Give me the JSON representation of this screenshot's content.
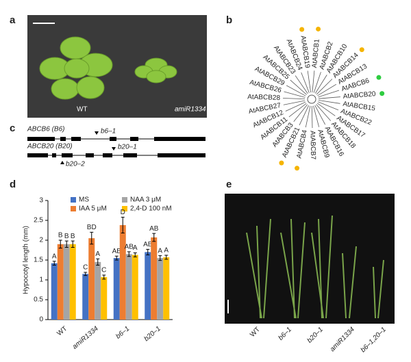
{
  "panels": {
    "a": "a",
    "b": "b",
    "c": "c",
    "d": "d",
    "e": "e"
  },
  "photo_a": {
    "labels": [
      "WT",
      "amiR1334"
    ]
  },
  "tree": {
    "leaves": [
      {
        "label": "AtABCB19",
        "marker": "#f5b400"
      },
      {
        "label": "AtABCB1",
        "marker": "#f5b400"
      },
      {
        "label": "AtABCB2"
      },
      {
        "label": "AtABCB10"
      },
      {
        "label": "AtABCB14",
        "marker": "#f5b400"
      },
      {
        "label": "AtABCB13"
      },
      {
        "label": "AtABCB6",
        "marker": "#2ecc40"
      },
      {
        "label": "AtABCB20",
        "marker": "#2ecc40"
      },
      {
        "label": "AtABCB15"
      },
      {
        "label": "AtABCB22"
      },
      {
        "label": "AtABCB17"
      },
      {
        "label": "AtABCB18"
      },
      {
        "label": "AtABCB16"
      },
      {
        "label": "AtABCB9"
      },
      {
        "label": "AtABCB7"
      },
      {
        "label": "AtABCB4",
        "marker": "#f5b400"
      },
      {
        "label": "AtABCB21",
        "marker": "#f5b400"
      },
      {
        "label": "AtABCB3"
      },
      {
        "label": "AtABCB11"
      },
      {
        "label": "AtABCB12"
      },
      {
        "label": "AtABCB27"
      },
      {
        "label": "AtABCB28"
      },
      {
        "label": "AtABCB26"
      },
      {
        "label": "AtABCB29"
      },
      {
        "label": "AtABCB25"
      },
      {
        "label": "AtABCB23"
      },
      {
        "label": "AtABCB24"
      }
    ]
  },
  "genes": {
    "b6_name": "ABCB6 (B6)",
    "b6_allele": "b6–1",
    "b20_name": "ABCB20 (B20)",
    "b20_allele1": "b20–1",
    "b20_allele2": "b20–2"
  },
  "chart_data": {
    "type": "bar",
    "y_label": "Hypocotyl length (mm)",
    "categories": [
      "WT",
      "amiR1334",
      "b6–1",
      "b20–1"
    ],
    "series": [
      {
        "name": "MS",
        "color": "#4472c4",
        "values": [
          1.42,
          1.15,
          1.55,
          1.7
        ],
        "errors": [
          0.05,
          0.04,
          0.05,
          0.07
        ],
        "letters": [
          "A",
          "C",
          "AB",
          "AB"
        ]
      },
      {
        "name": "IAA 5 μM",
        "color": "#ed7d31",
        "values": [
          1.9,
          2.05,
          2.38,
          2.07
        ],
        "errors": [
          0.1,
          0.15,
          0.2,
          0.1
        ],
        "letters": [
          "B",
          "BD",
          "D",
          "AB"
        ]
      },
      {
        "name": "NAA 3 μM",
        "color": "#a5a5a5",
        "values": [
          1.9,
          1.45,
          1.65,
          1.55
        ],
        "errors": [
          0.08,
          0.08,
          0.06,
          0.06
        ],
        "letters": [
          "B",
          "A",
          "AB",
          "A"
        ]
      },
      {
        "name": "2,4-D 100 nM",
        "color": "#ffc000",
        "values": [
          1.9,
          1.07,
          1.63,
          1.57
        ],
        "errors": [
          0.08,
          0.05,
          0.05,
          0.05
        ],
        "letters": [
          "B",
          "C",
          "A",
          "A"
        ]
      }
    ],
    "ylim": [
      0,
      3
    ],
    "yticks": [
      0,
      0.5,
      1,
      1.5,
      2,
      2.5,
      3
    ]
  },
  "photo_e": {
    "labels": [
      "WT",
      "b6–1",
      "b20–1",
      "amiR1334",
      "b6–1,20–1"
    ]
  }
}
